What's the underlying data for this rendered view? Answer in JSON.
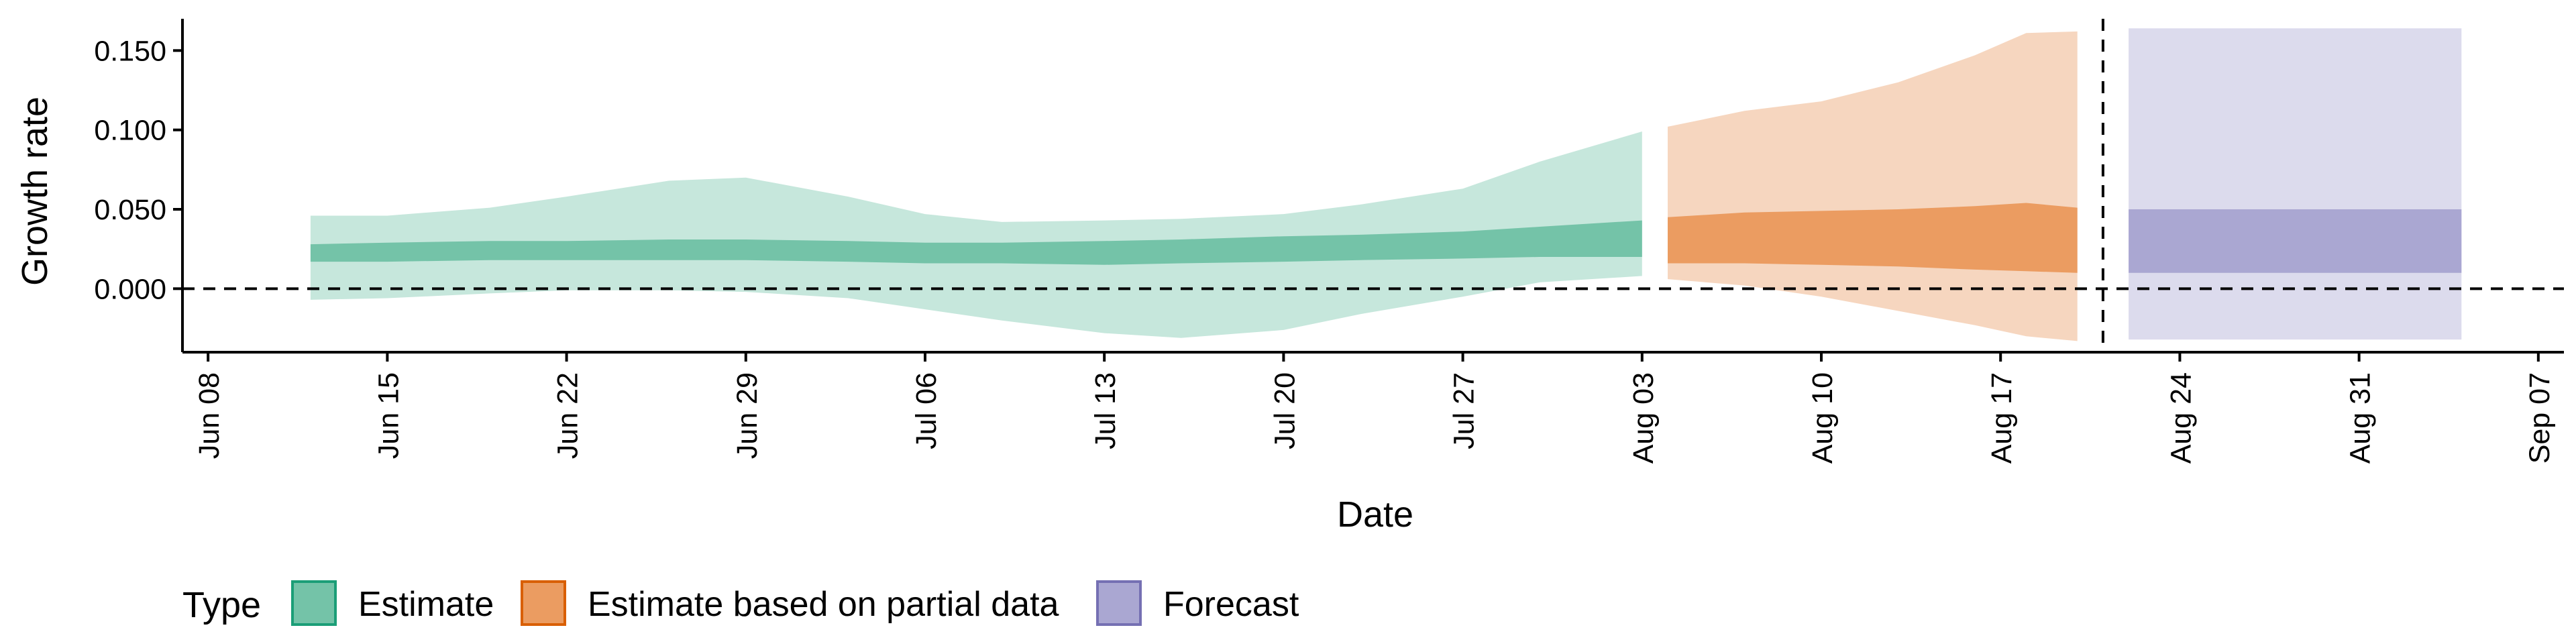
{
  "chart_data": {
    "type": "area",
    "xlabel": "Date",
    "ylabel": "Growth rate",
    "ylim": [
      -0.04,
      0.17
    ],
    "xlim": [
      "2020-06-07",
      "2020-09-08"
    ],
    "x_ticks": [
      "2020-06-08",
      "2020-06-15",
      "2020-06-22",
      "2020-06-29",
      "2020-07-06",
      "2020-07-13",
      "2020-07-20",
      "2020-07-27",
      "2020-08-03",
      "2020-08-10",
      "2020-08-17",
      "2020-08-24",
      "2020-08-31",
      "2020-09-07"
    ],
    "x_tick_labels": [
      "Jun 08",
      "Jun 15",
      "Jun 22",
      "Jun 29",
      "Jul 06",
      "Jul 13",
      "Jul 20",
      "Jul 27",
      "Aug 03",
      "Aug 10",
      "Aug 17",
      "Aug 24",
      "Aug 31",
      "Sep 07"
    ],
    "y_ticks": [
      0.0,
      0.05,
      0.1,
      0.15
    ],
    "y_tick_labels": [
      "0.000",
      "0.050",
      "0.100",
      "0.150"
    ],
    "reference_lines": {
      "horizontal_y": 0.0,
      "vertical_x": "2020-08-21",
      "style": "dashed"
    },
    "grid": false,
    "legend": {
      "title": "Type",
      "placement": "bottom",
      "entries": [
        {
          "label": "Estimate",
          "fill": "#74c3a8",
          "border": "#1b9e77"
        },
        {
          "label": "Estimate based on partial data",
          "fill": "#eb9c61",
          "border": "#d95f02"
        },
        {
          "label": "Forecast",
          "fill": "#aaa7d2",
          "border": "#7570b3"
        }
      ]
    },
    "series": [
      {
        "name": "Estimate",
        "outer_color": "#c6e7dc",
        "inner_color": "#74c3a8",
        "dates": [
          "2020-06-12",
          "2020-06-15",
          "2020-06-19",
          "2020-06-22",
          "2020-06-26",
          "2020-06-29",
          "2020-07-03",
          "2020-07-06",
          "2020-07-09",
          "2020-07-13",
          "2020-07-16",
          "2020-07-20",
          "2020-07-23",
          "2020-07-27",
          "2020-07-30",
          "2020-08-03"
        ],
        "outer_low": [
          -0.007,
          -0.006,
          -0.003,
          -0.001,
          -0.001,
          -0.002,
          -0.006,
          -0.013,
          -0.02,
          -0.028,
          -0.031,
          -0.026,
          -0.016,
          -0.005,
          0.004,
          0.008
        ],
        "outer_high": [
          0.046,
          0.046,
          0.051,
          0.058,
          0.068,
          0.07,
          0.058,
          0.047,
          0.042,
          0.043,
          0.044,
          0.047,
          0.053,
          0.063,
          0.08,
          0.099
        ],
        "inner_low": [
          0.017,
          0.017,
          0.018,
          0.018,
          0.018,
          0.018,
          0.017,
          0.016,
          0.016,
          0.015,
          0.016,
          0.017,
          0.018,
          0.019,
          0.02,
          0.02
        ],
        "inner_high": [
          0.028,
          0.029,
          0.03,
          0.03,
          0.031,
          0.031,
          0.03,
          0.029,
          0.029,
          0.03,
          0.031,
          0.033,
          0.034,
          0.036,
          0.039,
          0.043
        ]
      },
      {
        "name": "Estimate based on partial data",
        "outer_color": "#f6d6bf",
        "inner_color": "#eb9c61",
        "dates": [
          "2020-08-04",
          "2020-08-07",
          "2020-08-10",
          "2020-08-13",
          "2020-08-16",
          "2020-08-18",
          "2020-08-20"
        ],
        "outer_low": [
          0.006,
          0.002,
          -0.005,
          -0.014,
          -0.023,
          -0.03,
          -0.033
        ],
        "outer_high": [
          0.102,
          0.112,
          0.118,
          0.13,
          0.147,
          0.161,
          0.162
        ],
        "inner_low": [
          0.016,
          0.016,
          0.015,
          0.014,
          0.012,
          0.011,
          0.01
        ],
        "inner_high": [
          0.045,
          0.048,
          0.049,
          0.05,
          0.052,
          0.054,
          0.051
        ]
      },
      {
        "name": "Forecast",
        "outer_color": "#dcdbed",
        "inner_color": "#aaa7d2",
        "dates": [
          "2020-08-22",
          "2020-09-04"
        ],
        "outer_low": [
          -0.032,
          -0.032
        ],
        "outer_high": [
          0.164,
          0.164
        ],
        "inner_low": [
          0.01,
          0.01
        ],
        "inner_high": [
          0.05,
          0.05
        ]
      }
    ]
  }
}
